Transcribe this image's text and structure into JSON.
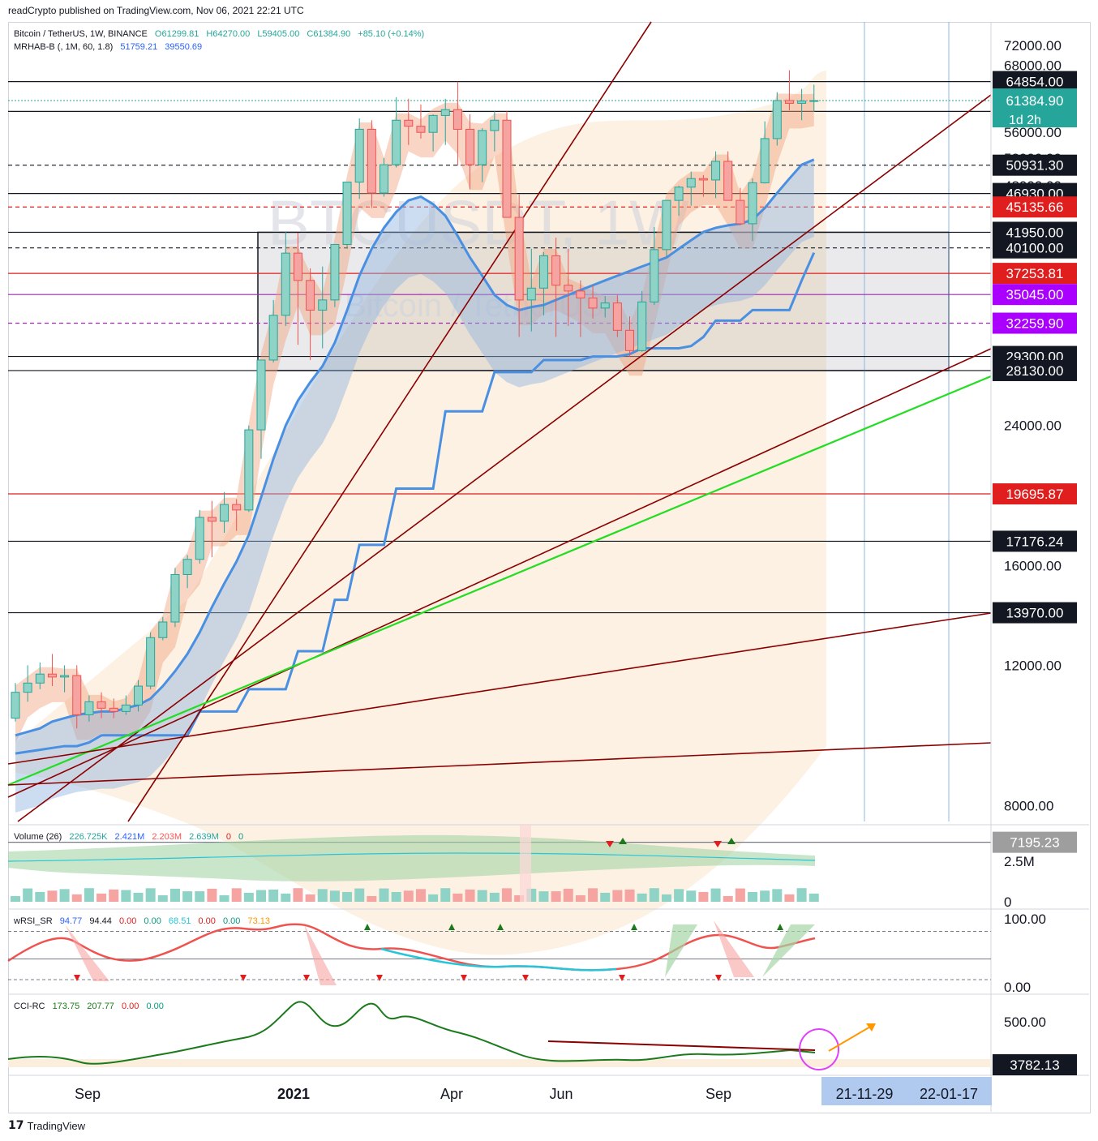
{
  "header": {
    "publish_line": "readCrypto published on TradingView.com, Nov 06, 2021 22:21 UTC"
  },
  "legend": {
    "symbol": "Bitcoin / TetherUS, 1W, BINANCE",
    "ohlc": [
      "O61299.81",
      "H64270.00",
      "L59405.00",
      "C61384.90",
      "+85.10 (+0.14%)"
    ],
    "mrhab_label": "MRHAB-B (, 1M, 60, 1.8)",
    "mrhab_values": [
      "51759.21",
      "39550.69"
    ]
  },
  "watermark": {
    "symbol": "BTCUSDT, 1W",
    "name": "Bitcoin / TetherUS"
  },
  "price_axis": {
    "ticks": [
      "72000.00",
      "68000.00",
      "56000.00",
      "52000.00",
      "48000.00",
      "24000.00",
      "16000.00",
      "12000.00",
      "8000.00"
    ]
  },
  "price_levels": [
    {
      "value": "64854.00",
      "price": 64854,
      "color": "#131722",
      "style": "solid"
    },
    {
      "value": "59500.00",
      "price": 59500,
      "color": "#131722",
      "style": "solid"
    },
    {
      "value": "50931.30",
      "price": 50931.3,
      "color": "#131722",
      "style": "dashed"
    },
    {
      "value": "46930.00",
      "price": 46930,
      "color": "#131722",
      "style": "solid"
    },
    {
      "value": "45135.66",
      "price": 45135.66,
      "color": "#e01e1e",
      "style": "dashed"
    },
    {
      "value": "41950.00",
      "price": 41950,
      "color": "#131722",
      "style": "solid"
    },
    {
      "value": "40100.00",
      "price": 40100,
      "color": "#131722",
      "style": "dashed"
    },
    {
      "value": "37253.81",
      "price": 37253.81,
      "color": "#e01e1e",
      "style": "solid"
    },
    {
      "value": "35045.00",
      "price": 35045,
      "color": "#9c27b0",
      "style": "solid"
    },
    {
      "value": "32259.90",
      "price": 32259.9,
      "color": "#9c27b0",
      "style": "dashed"
    },
    {
      "value": "29300.00",
      "price": 29300,
      "color": "#131722",
      "style": "solid"
    },
    {
      "value": "28130.00",
      "price": 28130,
      "color": "#131722",
      "style": "solid"
    },
    {
      "value": "19695.87",
      "price": 19695.87,
      "color": "#e01e1e",
      "style": "solid"
    },
    {
      "value": "17176.24",
      "price": 17176.24,
      "color": "#131722",
      "style": "solid"
    },
    {
      "value": "13970.00",
      "price": 13970,
      "color": "#131722",
      "style": "solid"
    },
    {
      "value": "7195.23",
      "price": 7195.23,
      "color": "#787b86",
      "style": "solid"
    },
    {
      "value": "3782.13",
      "price": 3782.13,
      "color": "#131722",
      "style": "solid"
    }
  ],
  "last_price": {
    "value": "61384.90",
    "countdown": "1d 2h",
    "color": "#26a69a"
  },
  "volume_pane": {
    "label": "Volume (26)",
    "values": [
      "226.725K",
      "2.421M",
      "2.203M",
      "2.639M",
      "0",
      "0"
    ],
    "ticks": [
      "2.5M",
      "0"
    ]
  },
  "wrsi_pane": {
    "label": "wRSI_SR",
    "values": [
      "94.77",
      "94.44",
      "0.00",
      "0.00",
      "68.51",
      "0.00",
      "0.00",
      "73.13"
    ],
    "ticks": [
      "100.00",
      "0.00"
    ]
  },
  "cci_pane": {
    "label": "CCI-RC",
    "values": [
      "173.75",
      "207.77",
      "0.00",
      "0.00"
    ],
    "ticks": [
      "500.00",
      "0.00"
    ]
  },
  "time_axis": {
    "labels": [
      "Sep",
      "2021",
      "Apr",
      "Jun",
      "Sep"
    ],
    "highlight": [
      "21-11-29",
      "22-01-17"
    ]
  },
  "chart_data": {
    "type": "candlestick",
    "symbol": "BTCUSDT",
    "interval": "1W",
    "exchange": "BINANCE",
    "scale": "log",
    "ylim": [
      3782.13,
      72000
    ],
    "last": {
      "open": 61299.81,
      "high": 64270.0,
      "low": 59405.0,
      "close": 61384.9,
      "change": 85.1,
      "change_pct": 0.14
    },
    "candles": [
      [
        10300,
        11400,
        10200,
        11100
      ],
      [
        11100,
        12000,
        10800,
        11400
      ],
      [
        11400,
        12100,
        11200,
        11700
      ],
      [
        11700,
        12400,
        11300,
        11600
      ],
      [
        11600,
        12000,
        11100,
        11650
      ],
      [
        11650,
        12000,
        10000,
        10400
      ],
      [
        10400,
        11000,
        10200,
        10800
      ],
      [
        10800,
        11100,
        10300,
        10600
      ],
      [
        10600,
        10900,
        10300,
        10500
      ],
      [
        10500,
        11000,
        10400,
        10700
      ],
      [
        10700,
        11500,
        10500,
        11300
      ],
      [
        11300,
        13200,
        11200,
        13000
      ],
      [
        13000,
        13800,
        12900,
        13600
      ],
      [
        13600,
        15900,
        13400,
        15600
      ],
      [
        15600,
        16500,
        15000,
        16300
      ],
      [
        16300,
        18800,
        16100,
        18400
      ],
      [
        18400,
        19300,
        16400,
        18200
      ],
      [
        18200,
        19800,
        17600,
        19100
      ],
      [
        19100,
        19400,
        17700,
        18800
      ],
      [
        18800,
        24000,
        18700,
        23700
      ],
      [
        23700,
        29000,
        21800,
        29000
      ],
      [
        29000,
        34500,
        28800,
        33000
      ],
      [
        33000,
        42000,
        32000,
        39500
      ],
      [
        39500,
        41900,
        30300,
        36500
      ],
      [
        36500,
        37800,
        29000,
        33500
      ],
      [
        33500,
        38000,
        30000,
        34500
      ],
      [
        34500,
        40000,
        33800,
        40500
      ],
      [
        40500,
        48500,
        40000,
        48500
      ],
      [
        48500,
        58300,
        46200,
        56500
      ],
      [
        56500,
        58000,
        45000,
        47000
      ],
      [
        47000,
        52000,
        46500,
        51000
      ],
      [
        51000,
        62000,
        50600,
        58000
      ],
      [
        58000,
        61700,
        54000,
        57000
      ],
      [
        57000,
        60700,
        55000,
        56000
      ],
      [
        56000,
        59000,
        53000,
        58800
      ],
      [
        58800,
        61700,
        54000,
        59800
      ],
      [
        59800,
        64850,
        50900,
        56500
      ],
      [
        56500,
        59000,
        47500,
        51000
      ],
      [
        51000,
        56700,
        48500,
        56300
      ],
      [
        56300,
        59500,
        53000,
        58000
      ],
      [
        58000,
        59500,
        43800,
        43800
      ],
      [
        43800,
        46800,
        31000,
        34500
      ],
      [
        34500,
        40000,
        31500,
        35700
      ],
      [
        35700,
        39600,
        33000,
        39200
      ],
      [
        39200,
        41300,
        31000,
        36000
      ],
      [
        36000,
        40000,
        32000,
        35400
      ],
      [
        35400,
        36500,
        31000,
        34700
      ],
      [
        34700,
        36000,
        32700,
        33700
      ],
      [
        33700,
        34900,
        32800,
        34200
      ],
      [
        34200,
        35000,
        31000,
        31600
      ],
      [
        31600,
        32900,
        29300,
        29800
      ],
      [
        29800,
        35400,
        29700,
        34300
      ],
      [
        34300,
        42600,
        34000,
        39900
      ],
      [
        39900,
        46000,
        39000,
        46000
      ],
      [
        46000,
        48000,
        44000,
        47800
      ],
      [
        47800,
        50000,
        45300,
        49000
      ],
      [
        49000,
        49500,
        46500,
        48800
      ],
      [
        48800,
        53000,
        46300,
        51500
      ],
      [
        51500,
        53000,
        46300,
        46000
      ],
      [
        46000,
        47700,
        42800,
        43000
      ],
      [
        43000,
        49000,
        40900,
        48400
      ],
      [
        48400,
        57800,
        48300,
        55000
      ],
      [
        55000,
        62900,
        53900,
        61400
      ],
      [
        61400,
        67000,
        59700,
        60900
      ],
      [
        60900,
        63500,
        58000,
        61300
      ],
      [
        61299.81,
        64270,
        59405,
        61384.9
      ]
    ],
    "volume": {
      "latest": 226725,
      "ma": 2421000,
      "values": [
        2421000,
        2203000,
        2639000
      ]
    },
    "wrsi": {
      "values": [
        94.77,
        94.44,
        68.51,
        73.13
      ],
      "range": [
        0,
        100
      ]
    },
    "cci": {
      "values": [
        173.75,
        207.77
      ],
      "range": [
        0,
        500
      ]
    },
    "dates_visible": [
      "Sep",
      "2021",
      "Apr",
      "Jun",
      "Sep",
      "21-11-29",
      "22-01-17"
    ]
  },
  "footer": {
    "brand": "TradingView"
  }
}
